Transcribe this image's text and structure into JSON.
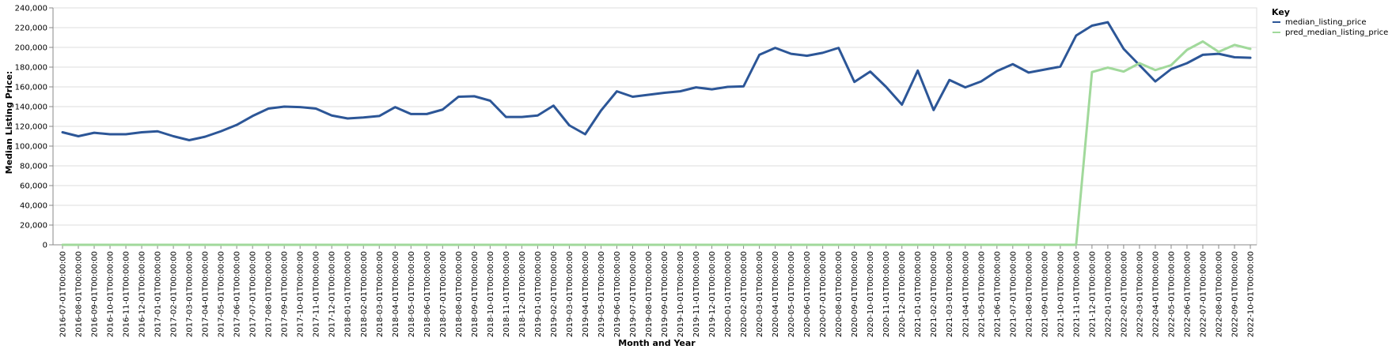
{
  "chart_data": {
    "type": "line",
    "xlabel": "Month and Year",
    "ylabel": "Median Listing Price:",
    "ylim": [
      0,
      240000
    ],
    "y_ticks": [
      0,
      20000,
      40000,
      60000,
      80000,
      100000,
      120000,
      140000,
      160000,
      180000,
      200000,
      220000,
      240000
    ],
    "y_tick_labels": [
      "0",
      "20,000",
      "40,000",
      "60,000",
      "80,000",
      "100,000",
      "120,000",
      "140,000",
      "160,000",
      "180,000",
      "200,000",
      "220,000",
      "240,000"
    ],
    "grid": true,
    "legend": {
      "title": "Key",
      "position": "top-right"
    },
    "categories": [
      "2016-07-01T00:00:00",
      "2016-08-01T00:00:00",
      "2016-09-01T00:00:00",
      "2016-10-01T00:00:00",
      "2016-11-01T00:00:00",
      "2016-12-01T00:00:00",
      "2017-01-01T00:00:00",
      "2017-02-01T00:00:00",
      "2017-03-01T00:00:00",
      "2017-04-01T00:00:00",
      "2017-05-01T00:00:00",
      "2017-06-01T00:00:00",
      "2017-07-01T00:00:00",
      "2017-08-01T00:00:00",
      "2017-09-01T00:00:00",
      "2017-10-01T00:00:00",
      "2017-11-01T00:00:00",
      "2017-12-01T00:00:00",
      "2018-01-01T00:00:00",
      "2018-02-01T00:00:00",
      "2018-03-01T00:00:00",
      "2018-04-01T00:00:00",
      "2018-05-01T00:00:00",
      "2018-06-01T00:00:00",
      "2018-07-01T00:00:00",
      "2018-08-01T00:00:00",
      "2018-09-01T00:00:00",
      "2018-10-01T00:00:00",
      "2018-11-01T00:00:00",
      "2018-12-01T00:00:00",
      "2019-01-01T00:00:00",
      "2019-02-01T00:00:00",
      "2019-03-01T00:00:00",
      "2019-04-01T00:00:00",
      "2019-05-01T00:00:00",
      "2019-06-01T00:00:00",
      "2019-07-01T00:00:00",
      "2019-08-01T00:00:00",
      "2019-09-01T00:00:00",
      "2019-10-01T00:00:00",
      "2019-11-01T00:00:00",
      "2019-12-01T00:00:00",
      "2020-01-01T00:00:00",
      "2020-02-01T00:00:00",
      "2020-03-01T00:00:00",
      "2020-04-01T00:00:00",
      "2020-05-01T00:00:00",
      "2020-06-01T00:00:00",
      "2020-07-01T00:00:00",
      "2020-08-01T00:00:00",
      "2020-09-01T00:00:00",
      "2020-10-01T00:00:00",
      "2020-11-01T00:00:00",
      "2020-12-01T00:00:00",
      "2021-01-01T00:00:00",
      "2021-02-01T00:00:00",
      "2021-03-01T00:00:00",
      "2021-04-01T00:00:00",
      "2021-05-01T00:00:00",
      "2021-06-01T00:00:00",
      "2021-07-01T00:00:00",
      "2021-08-01T00:00:00",
      "2021-09-01T00:00:00",
      "2021-10-01T00:00:00",
      "2021-11-01T00:00:00",
      "2021-12-01T00:00:00",
      "2022-01-01T00:00:00",
      "2022-02-01T00:00:00",
      "2022-03-01T00:00:00",
      "2022-04-01T00:00:00",
      "2022-05-01T00:00:00",
      "2022-06-01T00:00:00",
      "2022-07-01T00:00:00",
      "2022-08-01T00:00:00",
      "2022-09-01T00:00:00",
      "2022-10-01T00:00:00"
    ],
    "series": [
      {
        "name": "median_listing_price",
        "color": "#2c5697",
        "values": [
          114000,
          110000,
          113500,
          112000,
          112000,
          114000,
          115000,
          110000,
          106000,
          109500,
          115000,
          121500,
          130500,
          138000,
          140000,
          139500,
          138000,
          131000,
          128000,
          129000,
          130500,
          139500,
          132500,
          132500,
          137000,
          150000,
          150500,
          146000,
          129500,
          129500,
          131000,
          141000,
          121000,
          112000,
          136000,
          155500,
          150000,
          152000,
          154000,
          155500,
          159500,
          157500,
          160000,
          160500,
          192500,
          199500,
          193500,
          191500,
          194500,
          199500,
          165000,
          175500,
          160000,
          142000,
          176500,
          136500,
          167000,
          159500,
          165500,
          176000,
          183000,
          174500,
          177500,
          180500,
          212000,
          222000,
          225500,
          198500,
          182000,
          165500,
          178000,
          184000,
          192500,
          193500,
          190000,
          189500
        ]
      },
      {
        "name": "pred_median_listing_price",
        "color": "#a1d99b",
        "values": [
          0,
          0,
          0,
          0,
          0,
          0,
          0,
          0,
          0,
          0,
          0,
          0,
          0,
          0,
          0,
          0,
          0,
          0,
          0,
          0,
          0,
          0,
          0,
          0,
          0,
          0,
          0,
          0,
          0,
          0,
          0,
          0,
          0,
          0,
          0,
          0,
          0,
          0,
          0,
          0,
          0,
          0,
          0,
          0,
          0,
          0,
          0,
          0,
          0,
          0,
          0,
          0,
          0,
          0,
          0,
          0,
          0,
          0,
          0,
          0,
          0,
          0,
          0,
          0,
          0,
          175000,
          179500,
          175500,
          184000,
          177000,
          182000,
          197500,
          206000,
          195500,
          202500,
          198500
        ]
      }
    ]
  }
}
